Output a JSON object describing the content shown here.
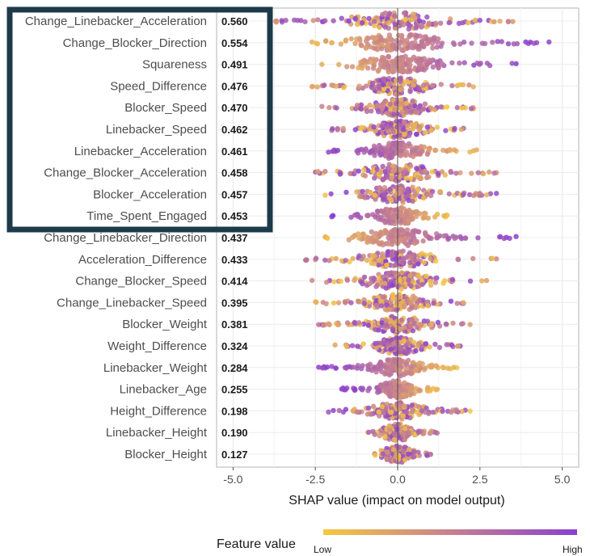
{
  "chart_data": {
    "type": "scatter",
    "subtype": "shap-beeswarm",
    "xlabel": "SHAP value (impact on model output)",
    "xlim": [
      -5.5,
      5.5
    ],
    "xticks": [
      -5.0,
      -2.5,
      0.0,
      2.5,
      5.0
    ],
    "xtick_labels": [
      "-5.0",
      "-2.5",
      "0.0",
      "2.5",
      "5.0"
    ],
    "grid": true,
    "legend": {
      "title": "Feature value",
      "low_label": "Low",
      "high_label": "High",
      "placement": "bottom",
      "colors": [
        "#f6c83f",
        "#c7818e",
        "#8a3fd0"
      ]
    },
    "highlight_box": {
      "color": "#1d3a4a",
      "features_highlighted": 10
    },
    "features": [
      {
        "name": "Change_Linebacker_Acceleration",
        "mean_abs_shap": "0.560",
        "range": [
          -3.7,
          3.5
        ],
        "high_side": "mixed"
      },
      {
        "name": "Change_Blocker_Direction",
        "mean_abs_shap": "0.554",
        "range": [
          -2.6,
          4.6
        ],
        "high_side": "positive"
      },
      {
        "name": "Squareness",
        "mean_abs_shap": "0.491",
        "range": [
          -2.3,
          3.6
        ],
        "high_side": "positive"
      },
      {
        "name": "Speed_Difference",
        "mean_abs_shap": "0.476",
        "range": [
          -2.6,
          2.3
        ],
        "high_side": "mixed"
      },
      {
        "name": "Blocker_Speed",
        "mean_abs_shap": "0.470",
        "range": [
          -2.3,
          2.3
        ],
        "high_side": "mixed"
      },
      {
        "name": "Linebacker_Speed",
        "mean_abs_shap": "0.462",
        "range": [
          -2.0,
          2.0
        ],
        "high_side": "mixed"
      },
      {
        "name": "Linebacker_Acceleration",
        "mean_abs_shap": "0.461",
        "range": [
          -2.1,
          2.4
        ],
        "high_side": "negative"
      },
      {
        "name": "Change_Blocker_Acceleration",
        "mean_abs_shap": "0.458",
        "range": [
          -2.5,
          3.0
        ],
        "high_side": "mixed"
      },
      {
        "name": "Blocker_Acceleration",
        "mean_abs_shap": "0.457",
        "range": [
          -2.2,
          3.0
        ],
        "high_side": "mixed"
      },
      {
        "name": "Time_Spent_Engaged",
        "mean_abs_shap": "0.453",
        "range": [
          -2.0,
          1.5
        ],
        "high_side": "negative"
      },
      {
        "name": "Change_Linebacker_Direction",
        "mean_abs_shap": "0.437",
        "range": [
          -2.2,
          3.6
        ],
        "high_side": "positive"
      },
      {
        "name": "Acceleration_Difference",
        "mean_abs_shap": "0.433",
        "range": [
          -2.8,
          3.0
        ],
        "high_side": "mixed"
      },
      {
        "name": "Change_Blocker_Speed",
        "mean_abs_shap": "0.414",
        "range": [
          -2.6,
          2.7
        ],
        "high_side": "mixed"
      },
      {
        "name": "Change_Linebacker_Speed",
        "mean_abs_shap": "0.395",
        "range": [
          -2.5,
          2.0
        ],
        "high_side": "mixed"
      },
      {
        "name": "Blocker_Weight",
        "mean_abs_shap": "0.381",
        "range": [
          -2.4,
          2.2
        ],
        "high_side": "mixed"
      },
      {
        "name": "Weight_Difference",
        "mean_abs_shap": "0.324",
        "range": [
          -1.9,
          1.9
        ],
        "high_side": "mixed"
      },
      {
        "name": "Linebacker_Weight",
        "mean_abs_shap": "0.284",
        "range": [
          -2.4,
          1.8
        ],
        "high_side": "negative"
      },
      {
        "name": "Linebacker_Age",
        "mean_abs_shap": "0.255",
        "range": [
          -1.7,
          1.2
        ],
        "high_side": "negative"
      },
      {
        "name": "Height_Difference",
        "mean_abs_shap": "0.198",
        "range": [
          -2.1,
          2.2
        ],
        "high_side": "mixed"
      },
      {
        "name": "Linebacker_Height",
        "mean_abs_shap": "0.190",
        "range": [
          -0.9,
          1.2
        ],
        "high_side": "mixed"
      },
      {
        "name": "Blocker_Height",
        "mean_abs_shap": "0.127",
        "range": [
          -0.7,
          1.0
        ],
        "high_side": "mixed"
      }
    ]
  }
}
